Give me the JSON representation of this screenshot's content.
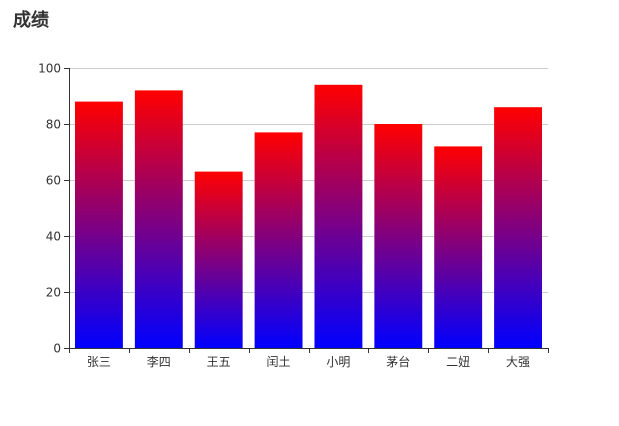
{
  "chart_data": {
    "type": "bar",
    "title": "成绩",
    "categories": [
      "张三",
      "李四",
      "王五",
      "闰土",
      "小明",
      "茅台",
      "二妞",
      "大强"
    ],
    "values": [
      88,
      92,
      63,
      77,
      94,
      80,
      72,
      86
    ],
    "xlabel": "",
    "ylabel": "",
    "ylim": [
      0,
      100
    ],
    "yticks": [
      0,
      20,
      40,
      60,
      80,
      100
    ],
    "grid": true,
    "legend": "none",
    "colors": {
      "bar_top": "#ff0000",
      "bar_mid": "#800080",
      "bar_bottom": "#0000ff",
      "grid": "#cccccc",
      "axis": "#333333",
      "text": "#333333"
    }
  }
}
